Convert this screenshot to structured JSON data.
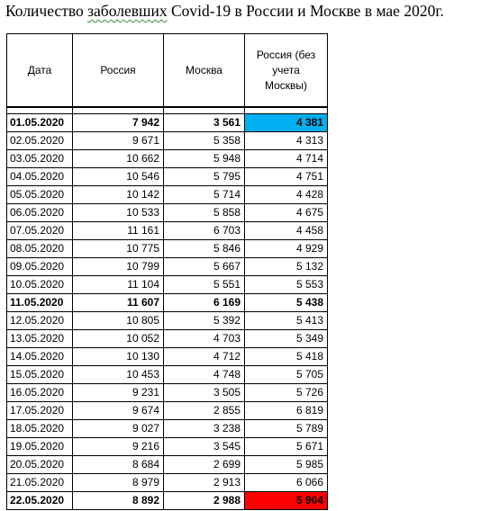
{
  "title": {
    "before": "Количество ",
    "underlined": "заболевших",
    "after": " Covid-19 в России и Москве в мае 2020г."
  },
  "table": {
    "headers": [
      "Дата",
      "Россия",
      "Москва",
      "Россия (без учета Москвы)"
    ],
    "rows": [
      {
        "date": "01.05.2020",
        "russia": "7 942",
        "moscow": "3 561",
        "excl": "4 381",
        "bold": true,
        "highlight": "blue"
      },
      {
        "date": "02.05.2020",
        "russia": "9 671",
        "moscow": "5 358",
        "excl": "4 313"
      },
      {
        "date": "03.05.2020",
        "russia": "10 662",
        "moscow": "5 948",
        "excl": "4 714"
      },
      {
        "date": "04.05.2020",
        "russia": "10 546",
        "moscow": "5 795",
        "excl": "4 751"
      },
      {
        "date": "05.05.2020",
        "russia": "10 142",
        "moscow": "5 714",
        "excl": "4 428"
      },
      {
        "date": "06.05.2020",
        "russia": "10 533",
        "moscow": "5 858",
        "excl": "4 675"
      },
      {
        "date": "07.05.2020",
        "russia": "11 161",
        "moscow": "6 703",
        "excl": "4 458"
      },
      {
        "date": "08.05.2020",
        "russia": "10 775",
        "moscow": "5 846",
        "excl": "4 929"
      },
      {
        "date": "09.05.2020",
        "russia": "10 799",
        "moscow": "5 667",
        "excl": "5 132"
      },
      {
        "date": "10.05.2020",
        "russia": "11 104",
        "moscow": "5 551",
        "excl": "5 553"
      },
      {
        "date": "11.05.2020",
        "russia": "11 607",
        "moscow": "6 169",
        "excl": "5 438",
        "bold": true
      },
      {
        "date": "12.05.2020",
        "russia": "10 805",
        "moscow": "5 392",
        "excl": "5 413"
      },
      {
        "date": "13.05.2020",
        "russia": "10 052",
        "moscow": "4 703",
        "excl": "5 349"
      },
      {
        "date": "14.05.2020",
        "russia": "10 130",
        "moscow": "4 712",
        "excl": "5 418"
      },
      {
        "date": "15.05.2020",
        "russia": "10 453",
        "moscow": "4 748",
        "excl": "5 705"
      },
      {
        "date": "16.05.2020",
        "russia": "9 231",
        "moscow": "3 505",
        "excl": "5 726"
      },
      {
        "date": "17.05.2020",
        "russia": "9 674",
        "moscow": "2 855",
        "excl": "6 819"
      },
      {
        "date": "18.05.2020",
        "russia": "9 027",
        "moscow": "3 238",
        "excl": "5 789"
      },
      {
        "date": "19.05.2020",
        "russia": "9 216",
        "moscow": "3 545",
        "excl": "5 671"
      },
      {
        "date": "20.05.2020",
        "russia": "8 684",
        "moscow": "2 699",
        "excl": "5 985"
      },
      {
        "date": "21.05.2020",
        "russia": "8 979",
        "moscow": "2 913",
        "excl": "6 066"
      },
      {
        "date": "22.05.2020",
        "russia": "8 892",
        "moscow": "2 988",
        "excl": "5 904",
        "bold": true,
        "highlight": "red"
      }
    ]
  },
  "colors": {
    "highlight_blue": "#00b0f0",
    "highlight_red": "#ff0000"
  }
}
